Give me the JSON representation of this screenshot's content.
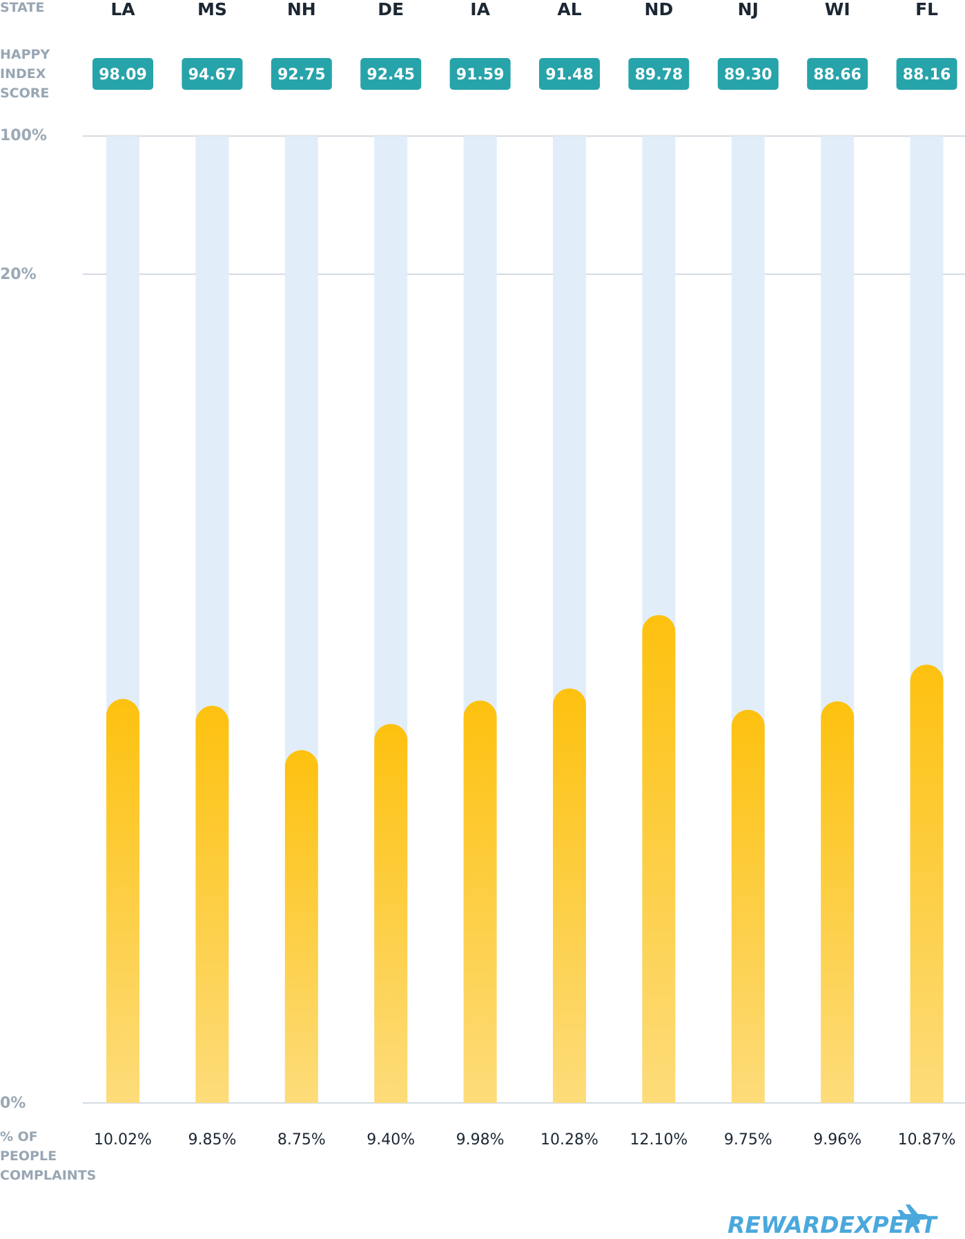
{
  "labels": {
    "state": "STATE",
    "happy_index": [
      "HAPPY",
      "INDEX",
      "SCORE"
    ],
    "complaints": [
      "% OF",
      "PEOPLE",
      "COMPLAINTS"
    ]
  },
  "brand": {
    "text": "REWARDEXPERT",
    "icon": "airplane-icon"
  },
  "colors": {
    "score_badge": "#27a3aa",
    "bar_fill_top": "#fdc10f",
    "bar_fill_bottom": "#fddc7a",
    "bar_track": "#e1eefa",
    "gridline": "#d3dbe2",
    "brand": "#4aa8dc"
  },
  "chart_data": {
    "type": "bar",
    "categories": [
      "LA",
      "MS",
      "NH",
      "DE",
      "IA",
      "AL",
      "ND",
      "NJ",
      "WI",
      "FL"
    ],
    "happy_index_score": [
      "98.09",
      "94.67",
      "92.75",
      "92.45",
      "91.59",
      "91.48",
      "89.78",
      "89.30",
      "88.66",
      "88.16"
    ],
    "series": [
      {
        "values": [
          10.02,
          9.85,
          8.75,
          9.4,
          9.98,
          10.28,
          12.1,
          9.75,
          9.96,
          10.87
        ],
        "value_labels": [
          "10.02%",
          "9.85%",
          "8.75%",
          "9.40%",
          "9.98%",
          "10.28%",
          "12.10%",
          "9.75%",
          "9.96%",
          "10.87%"
        ]
      }
    ],
    "y_ticks": [
      "100%",
      "20%",
      "0%"
    ],
    "grid": true
  }
}
